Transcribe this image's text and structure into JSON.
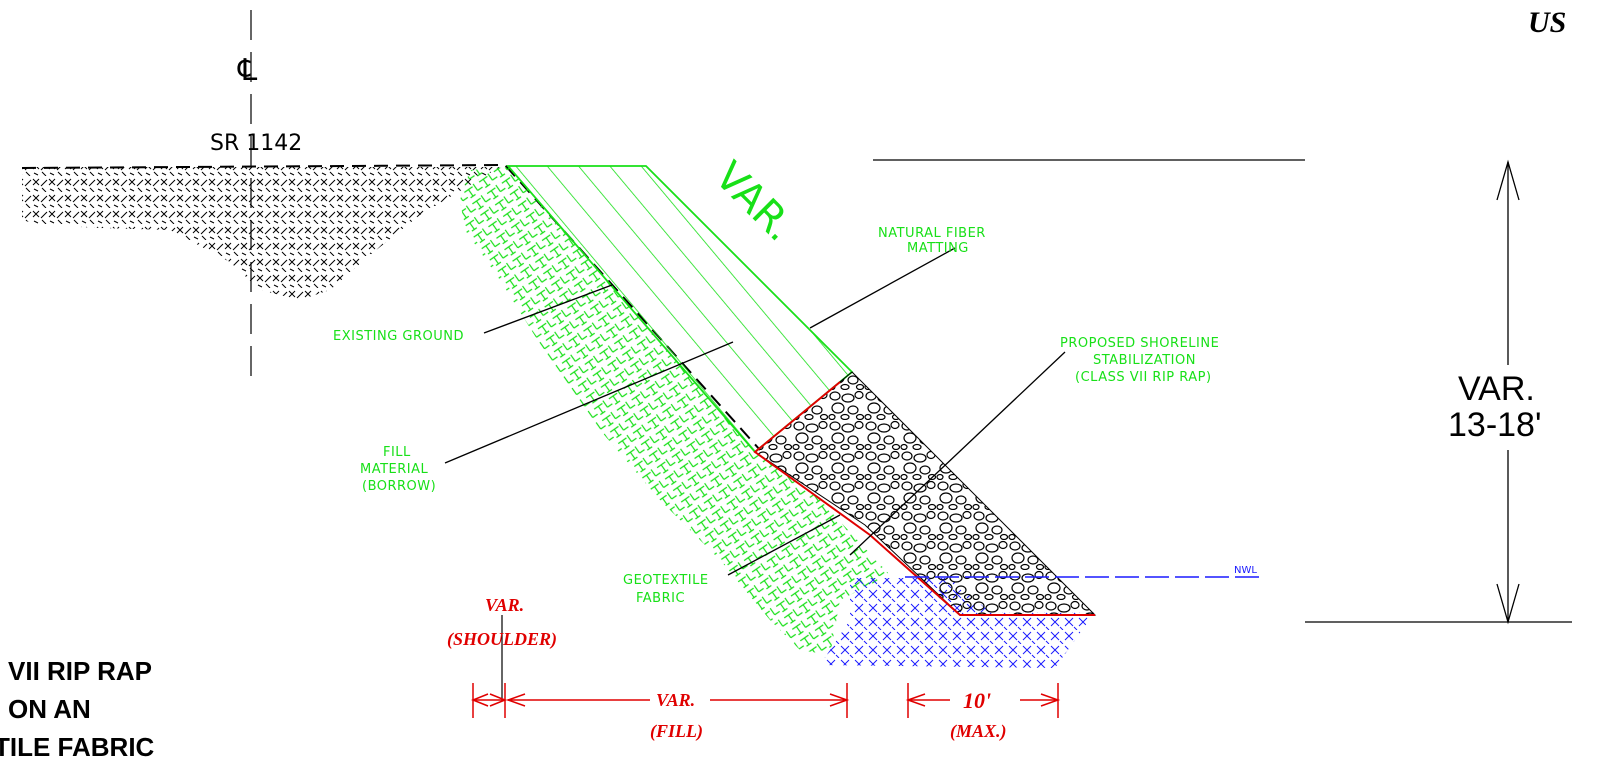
{
  "title_fragment": "US",
  "centerline": {
    "symbol": "℄",
    "road_label": "SR 1142"
  },
  "slope_label": "VAR.",
  "labels": {
    "existing_ground": "EXISTING GROUND",
    "natural_fiber": [
      "NATURAL FIBER",
      "MATTING"
    ],
    "fill_material": [
      "FILL",
      "MATERIAL",
      "(BORROW)"
    ],
    "proposed_shoreline": [
      "PROPOSED SHORELINE",
      "STABILIZATION",
      "(CLASS VII RIP RAP)"
    ],
    "geotextile": [
      "GEOTEXTILE",
      "FABRIC"
    ],
    "nwl": "NWL"
  },
  "height_dimension": [
    "VAR.",
    "13-18'"
  ],
  "bottom_dims": {
    "shoulder": [
      "VAR.",
      "(SHOULDER)"
    ],
    "fill": [
      "VAR.",
      "(FILL)"
    ],
    "max": [
      "10'",
      "(MAX.)"
    ]
  },
  "note_fragment": [
    "VII RIP RAP",
    "ON AN",
    "TILE FABRIC"
  ],
  "colors": {
    "green": "#18e018",
    "red": "#e00000",
    "blue": "#1a1aff",
    "black": "#000000"
  }
}
